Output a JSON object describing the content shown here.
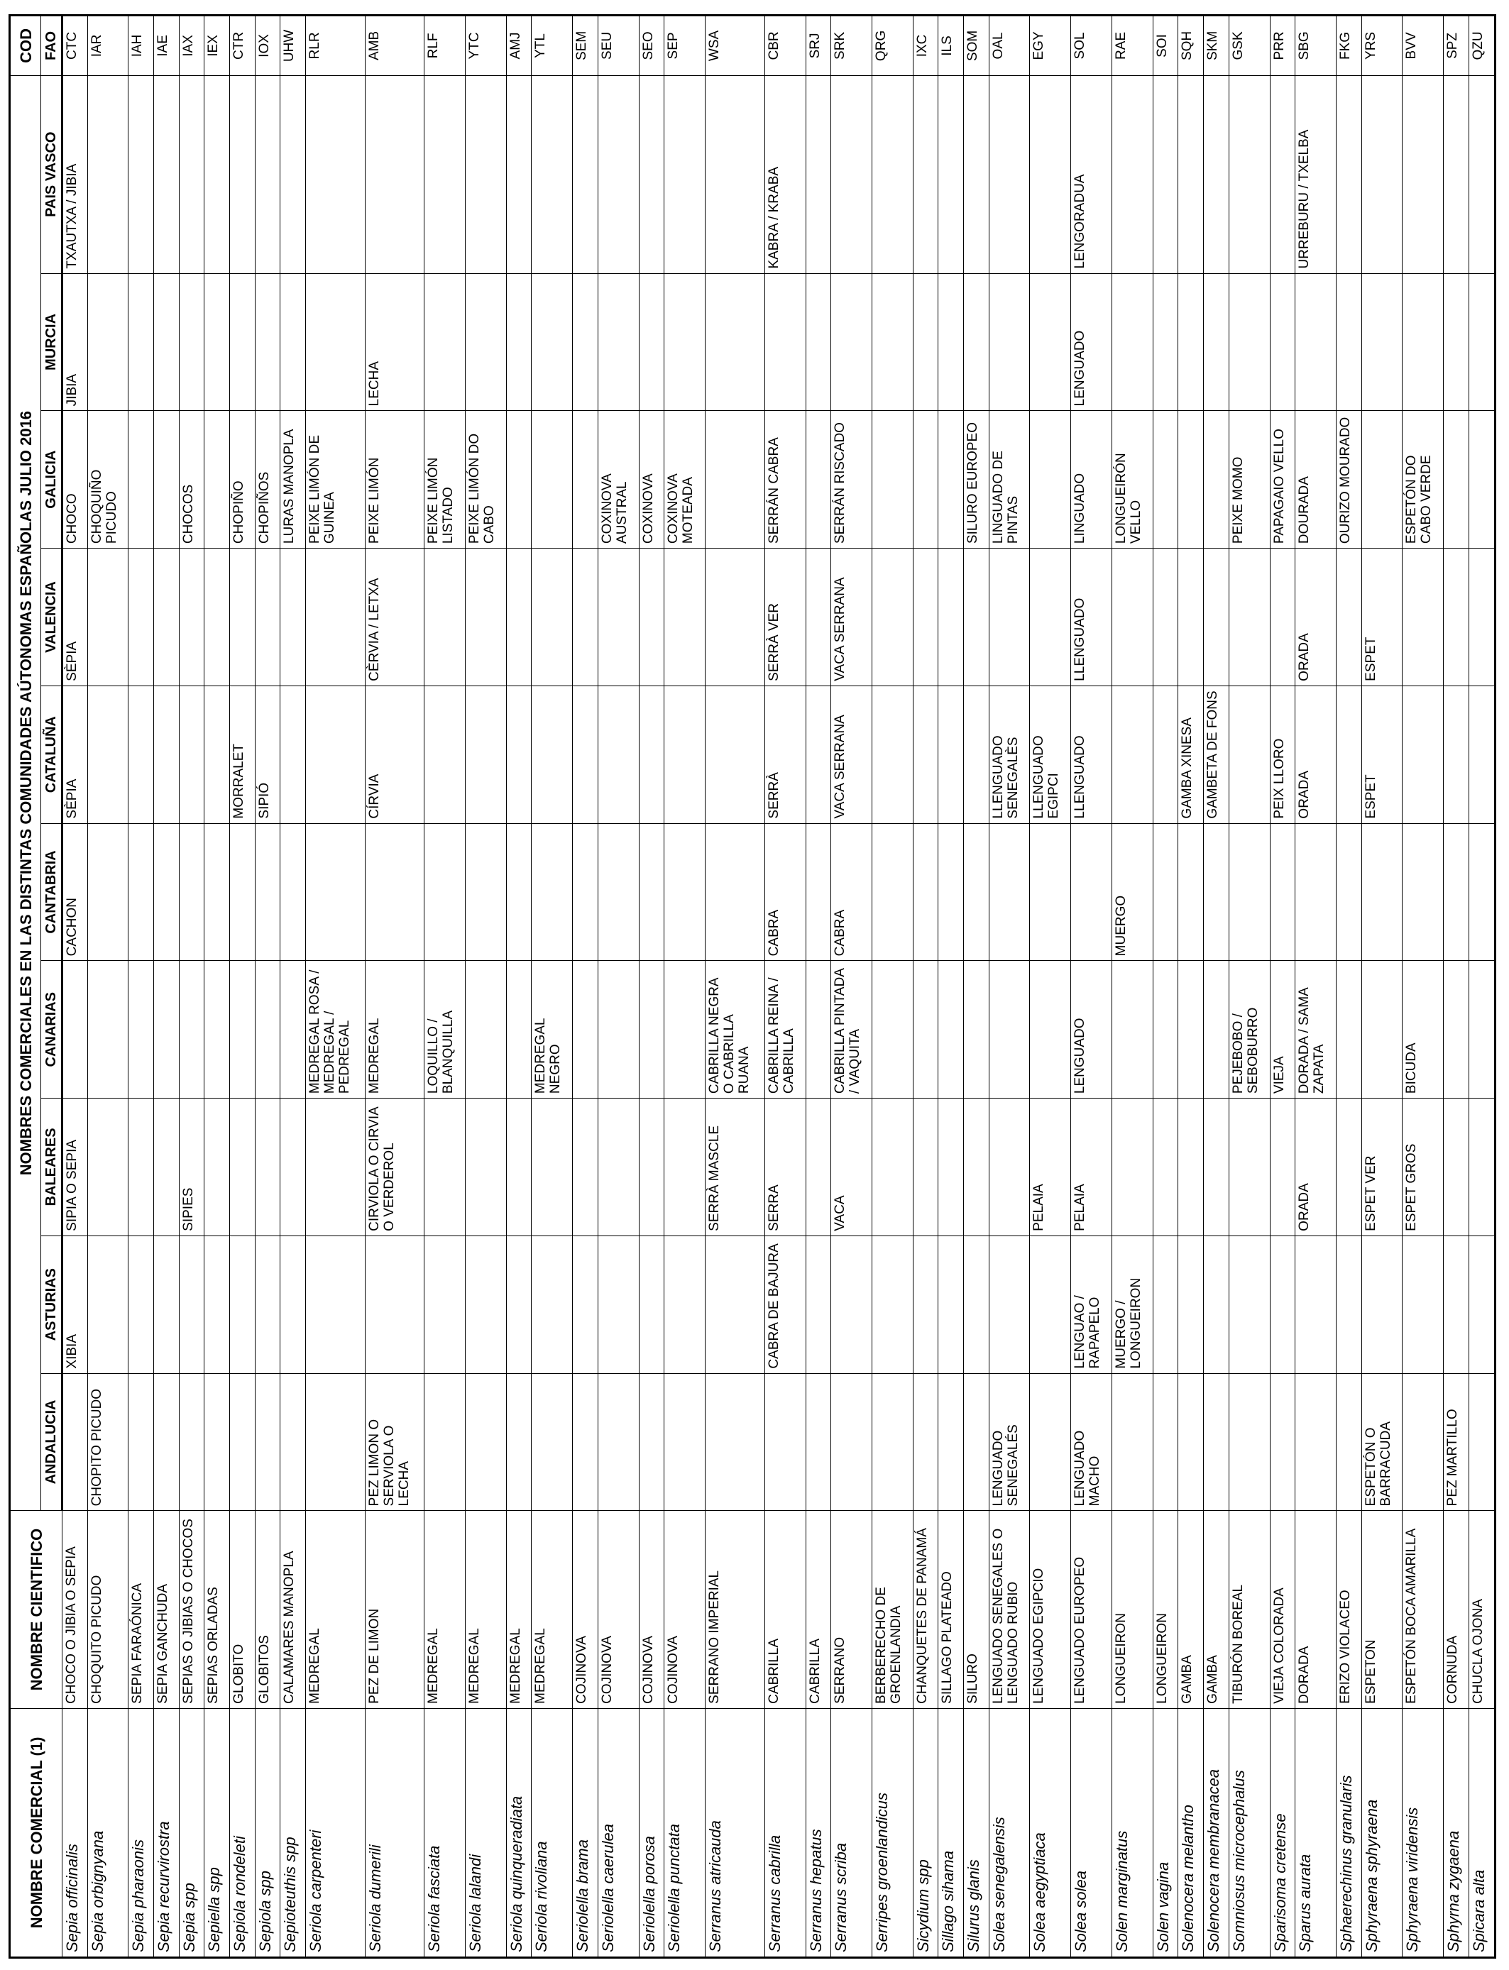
{
  "title": "NOMBRES COMERCIALES EN LAS DISTINTAS COMUNIDADES AÚTONOMAS ESPAÑOLAS JULIO 2016",
  "headers": {
    "nombre_comercial": "NOMBRE COMERCIAL (1)",
    "nombre_cientifico": "NOMBRE CIENTIFICO",
    "cod": "COD",
    "fao": "FAO",
    "regions": [
      "ANDALUCIA",
      "ASTURIAS",
      "BALEARES",
      "CANARIAS",
      "CANTABRIA",
      "CATALUÑA",
      "VALENCIA",
      "GALICIA",
      "MURCIA",
      "PAIS VASCO"
    ]
  },
  "rows": [
    {
      "sci": "Sepia officinalis",
      "name": "CHOCO O JIBIA O SEPIA",
      "reg": [
        "",
        "XIBIA",
        "SIPIA O SEPIA",
        "",
        "CACHON",
        "SÈPIA",
        "SÈPIA",
        "CHOCO",
        "JIBIA",
        "TXAUTXA / JIBIA"
      ],
      "fao": "CTC"
    },
    {
      "sci": "Sepia orbignyana",
      "name": "CHOQUITO PICUDO",
      "reg": [
        "CHOPITO PICUDO",
        "",
        "",
        "",
        "",
        "",
        "",
        "CHOQUIÑO PICUDO",
        "",
        ""
      ],
      "fao": "IAR"
    },
    {
      "sci": "Sepia pharaonis",
      "name": "SEPIA FARAÓNICA",
      "reg": [
        "",
        "",
        "",
        "",
        "",
        "",
        "",
        "",
        "",
        ""
      ],
      "fao": "IAH"
    },
    {
      "sci": "Sepia recurvirostra",
      "name": "SEPIA GANCHUDA",
      "reg": [
        "",
        "",
        "",
        "",
        "",
        "",
        "",
        "",
        "",
        ""
      ],
      "fao": "IAE"
    },
    {
      "sci": "Sepia spp",
      "name": "SEPIAS O JIBIAS O CHOCOS",
      "reg": [
        "",
        "",
        "SIPIES",
        "",
        "",
        "",
        "",
        "CHOCOS",
        "",
        ""
      ],
      "fao": "IAX"
    },
    {
      "sci": "Sepiella spp",
      "name": "SEPIAS ORLADAS",
      "reg": [
        "",
        "",
        "",
        "",
        "",
        "",
        "",
        "",
        "",
        ""
      ],
      "fao": "IEX"
    },
    {
      "sci": "Sepiola rondeleti",
      "name": "GLOBITO",
      "reg": [
        "",
        "",
        "",
        "",
        "",
        "MORRALET",
        "",
        "CHOPIÑO",
        "",
        ""
      ],
      "fao": "CTR"
    },
    {
      "sci": "Sepiola spp",
      "name": "GLOBITOS",
      "reg": [
        "",
        "",
        "",
        "",
        "",
        "SIPIÓ",
        "",
        "CHOPIÑOS",
        "",
        ""
      ],
      "fao": "IOX"
    },
    {
      "sci": "Sepioteuthis spp",
      "name": "CALAMARES MANOPLA",
      "reg": [
        "",
        "",
        "",
        "",
        "",
        "",
        "",
        "LURAS MANOPLA",
        "",
        ""
      ],
      "fao": "UHW"
    },
    {
      "sci": "Seriola carpenteri",
      "name": "MEDREGAL",
      "reg": [
        "",
        "",
        "",
        "MEDREGAL ROSA / MEDREGAL / PEDREGAL",
        "",
        "",
        "",
        "PEIXE LIMÓN DE GUINEA",
        "",
        ""
      ],
      "fao": "RLR"
    },
    {
      "sci": "Seriola dumerili",
      "name": "PEZ DE LIMON",
      "reg": [
        "PEZ LIMON O SERVIOLA O LECHA",
        "",
        "CIRVIOLA O CIRVIA O VERDEROL",
        "MEDREGAL",
        "",
        "CÍRVIA",
        "CÈRVIA / LETXA",
        "PEIXE LIMÓN",
        "LECHA",
        ""
      ],
      "fao": "AMB"
    },
    {
      "sci": "Seriola fasciata",
      "name": "MEDREGAL",
      "reg": [
        "",
        "",
        "",
        "LOQUILLO / BLANQUILLA",
        "",
        "",
        "",
        "PEIXE LIMÓN LISTADO",
        "",
        ""
      ],
      "fao": "RLF"
    },
    {
      "sci": "Seriola lalandi",
      "name": "MEDREGAL",
      "reg": [
        "",
        "",
        "",
        "",
        "",
        "",
        "",
        "PEIXE LIMÓN DO CABO",
        "",
        ""
      ],
      "fao": "YTC"
    },
    {
      "sci": "Seriola quinqueradiata",
      "name": "MEDREGAL",
      "reg": [
        "",
        "",
        "",
        "",
        "",
        "",
        "",
        "",
        "",
        ""
      ],
      "fao": "AMJ"
    },
    {
      "sci": "Seriola rivoliana",
      "name": "MEDREGAL",
      "reg": [
        "",
        "",
        "",
        "MEDREGAL NEGRO",
        "",
        "",
        "",
        "",
        "",
        ""
      ],
      "fao": "YTL"
    },
    {
      "sci": "Seriolella brama",
      "name": "COJINOVA",
      "reg": [
        "",
        "",
        "",
        "",
        "",
        "",
        "",
        "",
        "",
        ""
      ],
      "fao": "SEM"
    },
    {
      "sci": "Seriolella caerulea",
      "name": "COJINOVA",
      "reg": [
        "",
        "",
        "",
        "",
        "",
        "",
        "",
        "COXINOVA AUSTRAL",
        "",
        ""
      ],
      "fao": "SEU"
    },
    {
      "sci": "Seriolella porosa",
      "name": "COJINOVA",
      "reg": [
        "",
        "",
        "",
        "",
        "",
        "",
        "",
        "COXINOVA",
        "",
        ""
      ],
      "fao": "SEO"
    },
    {
      "sci": "Seriolella punctata",
      "name": "COJINOVA",
      "reg": [
        "",
        "",
        "",
        "",
        "",
        "",
        "",
        "COXINOVA MOTEADA",
        "",
        ""
      ],
      "fao": "SEP"
    },
    {
      "sci": "Serranus atricauda",
      "name": "SERRANO IMPERIAL",
      "reg": [
        "",
        "",
        "SERRÀ MASCLE",
        "CABRILLA NEGRA O CABRILLA RUANA",
        "",
        "",
        "",
        "",
        "",
        ""
      ],
      "fao": "WSA"
    },
    {
      "sci": "Serranus cabrilla",
      "name": "CABRILLA",
      "reg": [
        "",
        "CABRA DE BAJURA",
        "SERRA",
        "CABRILLA REINA / CABRILLA",
        "CABRA",
        "SERRÀ",
        "SERRÀ VER",
        "SERRÁN CABRA",
        "",
        "KABRA / KRABA"
      ],
      "fao": "CBR"
    },
    {
      "sci": "Serranus hepatus",
      "name": "CABRILLA",
      "reg": [
        "",
        "",
        "",
        "",
        "",
        "",
        "",
        "",
        "",
        ""
      ],
      "fao": "SRJ"
    },
    {
      "sci": "Serranus scriba",
      "name": "SERRANO",
      "reg": [
        "",
        "",
        "VACA",
        "CABRILLA PINTADA / VAQUITA",
        "CABRA",
        "VACA SERRANA",
        "VACA SERRANA",
        "SERRÁN RISCADO",
        "",
        ""
      ],
      "fao": "SRK"
    },
    {
      "sci": "Serripes groenlandicus",
      "name": "BERBERECHO DE GROENLANDIA",
      "reg": [
        "",
        "",
        "",
        "",
        "",
        "",
        "",
        "",
        "",
        ""
      ],
      "fao": "QRG"
    },
    {
      "sci": "Sicydium spp",
      "name": "CHANQUETES DE PANAMÁ",
      "reg": [
        "",
        "",
        "",
        "",
        "",
        "",
        "",
        "",
        "",
        ""
      ],
      "fao": "IXC"
    },
    {
      "sci": "Sillago sihama",
      "name": "SILLAGO PLATEADO",
      "reg": [
        "",
        "",
        "",
        "",
        "",
        "",
        "",
        "",
        "",
        ""
      ],
      "fao": "ILS"
    },
    {
      "sci": "Silurus glanis",
      "name": "SILURO",
      "reg": [
        "",
        "",
        "",
        "",
        "",
        "",
        "",
        "SILURO EUROPEO",
        "",
        ""
      ],
      "fao": "SOM"
    },
    {
      "sci": "Solea senegalensis",
      "name": "LENGUADO SENEGALES O LENGUADO RUBIO",
      "reg": [
        "LENGUADO SENEGALÉS",
        "",
        "",
        "",
        "",
        "LLENGUADO SENEGALÈS",
        "",
        "LINGUADO DE PINTAS",
        "",
        ""
      ],
      "fao": "OAL"
    },
    {
      "sci": "Solea aegyptiaca",
      "name": "LENGUADO EGIPCIO",
      "reg": [
        "",
        "",
        "PELAIA",
        "",
        "",
        "LLENGUADO EGIPCI",
        "",
        "",
        "",
        ""
      ],
      "fao": "EGY"
    },
    {
      "sci": "Solea solea",
      "name": "LENGUADO EUROPEO",
      "reg": [
        "LENGUADO MACHO",
        "LENGUAO / RAPAPELO",
        "PELAIA",
        "LENGUADO",
        "",
        "LLENGUADO",
        "LLENGUADO",
        "LINGUADO",
        "LENGUADO",
        "LENGORADUA"
      ],
      "fao": "SOL"
    },
    {
      "sci": "Solen marginatus",
      "name": "LONGUEIRON",
      "reg": [
        "",
        "MUERGO / LONGUEIRON",
        "",
        "",
        "MUERGO",
        "",
        "",
        "LONGUEIRÓN VELLO",
        "",
        ""
      ],
      "fao": "RAE"
    },
    {
      "sci": "Solen vagina",
      "name": "LONGUEIRON",
      "reg": [
        "",
        "",
        "",
        "",
        "",
        "",
        "",
        "",
        "",
        ""
      ],
      "fao": "SOI"
    },
    {
      "sci": "Solenocera melantho",
      "name": "GAMBA",
      "reg": [
        "",
        "",
        "",
        "",
        "",
        "GAMBA XINESA",
        "",
        "",
        "",
        ""
      ],
      "fao": "SQH"
    },
    {
      "sci": "Solenocera membranacea",
      "name": "GAMBA",
      "reg": [
        "",
        "",
        "",
        "",
        "",
        "GAMBETA DE FONS",
        "",
        "",
        "",
        ""
      ],
      "fao": "SKM"
    },
    {
      "sci": "Somniosus microcephalus",
      "name": "TIBURÓN BOREAL",
      "reg": [
        "",
        "",
        "",
        "PEJEBOBO / SEBOBURRO",
        "",
        "",
        "",
        "PEIXE MOMO",
        "",
        ""
      ],
      "fao": "GSK"
    },
    {
      "sci": "Sparisoma cretense",
      "name": "VIEJA COLORADA",
      "reg": [
        "",
        "",
        "",
        "VIEJA",
        "",
        "PEIX LLORO",
        "",
        "PAPAGAIO VELLO",
        "",
        ""
      ],
      "fao": "PRR"
    },
    {
      "sci": "Sparus aurata",
      "name": "DORADA",
      "reg": [
        "",
        "",
        "ORADA",
        "DORADA / SAMA ZAPATA",
        "",
        "ORADA",
        "ORADA",
        "DOURADA",
        "",
        "URREBURU / TXELBA"
      ],
      "fao": "SBG"
    },
    {
      "sci": "Sphaerechinus granularis",
      "name": "ERIZO VIOLACEO",
      "reg": [
        "",
        "",
        "",
        "",
        "",
        "",
        "",
        "OURIZO MOURADO",
        "",
        ""
      ],
      "fao": "FKG"
    },
    {
      "sci": "Sphyraena sphyraena",
      "name": "ESPETON",
      "reg": [
        "ESPETÓN O BARRACUDA",
        "",
        "ESPET VER",
        "",
        "",
        "ESPET",
        "ESPET",
        "",
        "",
        ""
      ],
      "fao": "YRS"
    },
    {
      "sci": "Sphyraena viridensis",
      "name": "ESPETÓN BOCA AMARILLA",
      "reg": [
        "",
        "",
        "ESPET GROS",
        "BICUDA",
        "",
        "",
        "",
        "ESPETÓN DO CABO VERDE",
        "",
        ""
      ],
      "fao": "BVV"
    },
    {
      "sci": "Sphyrna zygaena",
      "name": "CORNUDA",
      "reg": [
        "PEZ MARTILLO",
        "",
        "",
        "",
        "",
        "",
        "",
        "",
        "",
        ""
      ],
      "fao": "SPZ"
    },
    {
      "sci": "Spicara alta",
      "name": "CHUCLA OJONA",
      "reg": [
        "",
        "",
        "",
        "",
        "",
        "",
        "",
        "",
        "",
        ""
      ],
      "fao": "QZU"
    }
  ]
}
